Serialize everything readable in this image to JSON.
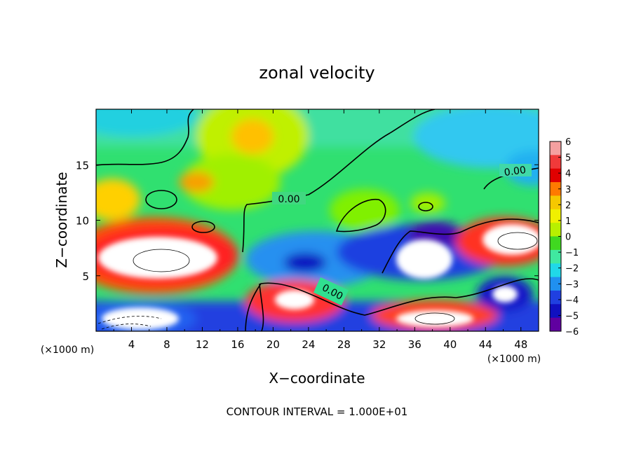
{
  "chart_data": {
    "type": "heatmap",
    "title": "zonal velocity",
    "xlabel": "X−coordinate",
    "ylabel": "Z−coordinate",
    "x_unit_left": "(×1000 m)",
    "x_unit_right": "(×1000 m)",
    "xlim": [
      0,
      50
    ],
    "ylim": [
      0,
      20
    ],
    "x_ticks": [
      "4",
      "8",
      "12",
      "16",
      "20",
      "24",
      "28",
      "32",
      "36",
      "40",
      "44",
      "48"
    ],
    "y_ticks": [
      "5",
      "10",
      "15"
    ],
    "colorbar": {
      "levels": [
        "6",
        "5",
        "4",
        "3",
        "2",
        "1",
        "0",
        "−1",
        "−2",
        "−3",
        "−4",
        "−5",
        "−6"
      ],
      "colors": [
        "#f4a0a0",
        "#f03a3a",
        "#e00000",
        "#ff7a00",
        "#f6c800",
        "#f0f000",
        "#b8f000",
        "#40d820",
        "#40e8a0",
        "#20d8e8",
        "#2090f0",
        "#2040e0",
        "#1010c0",
        "#6000a0"
      ]
    },
    "contour_labels": [
      "0.00",
      "0.00",
      "0.00"
    ],
    "footer": "CONTOUR INTERVAL = 1.000E+01",
    "grid": false,
    "legend": "right"
  }
}
